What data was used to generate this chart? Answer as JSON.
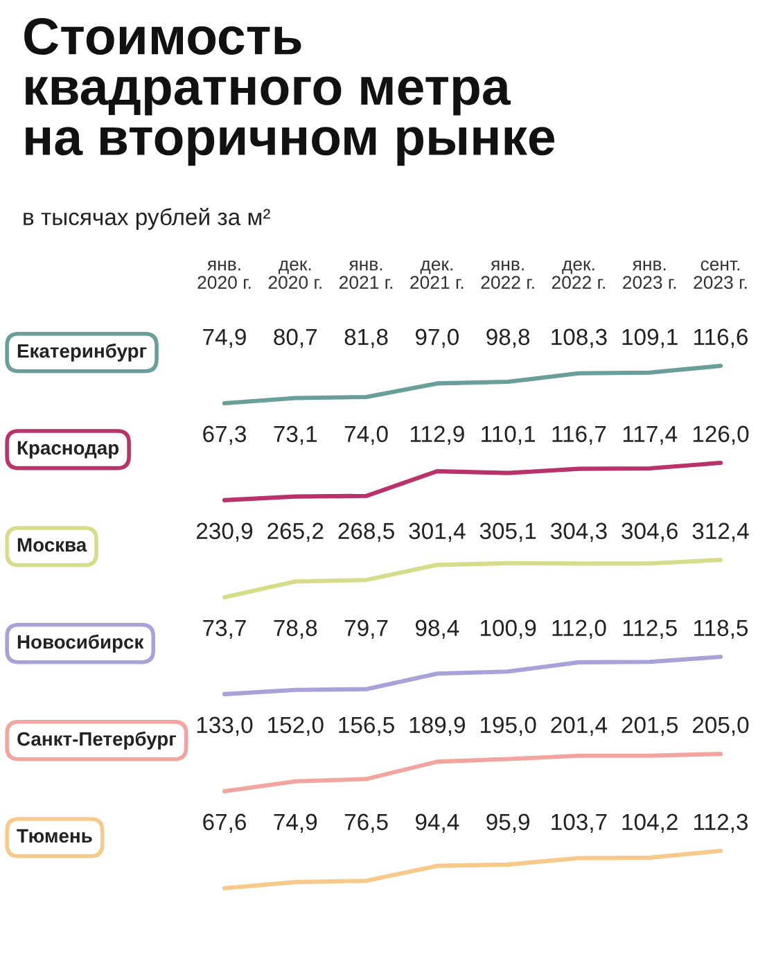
{
  "chart_data": [
    {
      "type": "line",
      "title": "Стоимость\nквадратного метра\nна вторичном рынке",
      "subtitle": "в тысячах рублей за м²",
      "categories": [
        "янв.\n2020 г.",
        "дек.\n2020 г.",
        "янв.\n2021 г.",
        "дек.\n2021 г.",
        "янв.\n2022 г.",
        "дек.\n2022 г.",
        "янв.\n2023 г.",
        "сент.\n2023 г."
      ],
      "tick_labels": "x",
      "series": [
        {
          "name": "Екатеринбург",
          "color": "#6a9e9a",
          "values": [
            74.9,
            80.7,
            81.8,
            97.0,
            98.8,
            108.3,
            109.1,
            116.6
          ],
          "value_labels": [
            "74,9",
            "80,7",
            "81,8",
            "97,0",
            "98,8",
            "108,3",
            "109,1",
            "116,6"
          ]
        }
      ]
    },
    {
      "type": "line",
      "categories": [
        null,
        null,
        null,
        null,
        null,
        null,
        null,
        null
      ],
      "tick_labels": false,
      "series": [
        {
          "name": "Краснодар",
          "color": "#b8336a",
          "values": [
            67.3,
            73.1,
            74.0,
            112.9,
            110.1,
            116.7,
            117.4,
            126.0
          ],
          "value_labels": [
            "67,3",
            "73,1",
            "74,0",
            "112,9",
            "110,1",
            "116,7",
            "117,4",
            "126,0"
          ]
        }
      ]
    },
    {
      "type": "line",
      "categories": [
        null,
        null,
        null,
        null,
        null,
        null,
        null,
        null
      ],
      "tick_labels": false,
      "series": [
        {
          "name": "Москва",
          "color": "#d6dc8a",
          "values": [
            230.9,
            265.2,
            268.5,
            301.4,
            305.1,
            304.3,
            304.6,
            312.4
          ],
          "value_labels": [
            "230,9",
            "265,2",
            "268,5",
            "301,4",
            "305,1",
            "304,3",
            "304,6",
            "312,4"
          ]
        }
      ]
    },
    {
      "type": "line",
      "categories": [
        null,
        null,
        null,
        null,
        null,
        null,
        null,
        null
      ],
      "tick_labels": false,
      "series": [
        {
          "name": "Новосибирск",
          "color": "#a7a3d8",
          "values": [
            73.7,
            78.8,
            79.7,
            98.4,
            100.9,
            112.0,
            112.5,
            118.5
          ],
          "value_labels": [
            "73,7",
            "78,8",
            "79,7",
            "98,4",
            "100,9",
            "112,0",
            "112,5",
            "118,5"
          ]
        }
      ]
    },
    {
      "type": "line",
      "categories": [
        null,
        null,
        null,
        null,
        null,
        null,
        null,
        null
      ],
      "tick_labels": false,
      "series": [
        {
          "name": "Санкт-Петербург",
          "color": "#f2a49f",
          "values": [
            133.0,
            152.0,
            156.5,
            189.9,
            195.0,
            201.4,
            201.5,
            205.0
          ],
          "value_labels": [
            "133,0",
            "152,0",
            "156,5",
            "189,9",
            "195,0",
            "201,4",
            "201,5",
            "205,0"
          ]
        }
      ]
    },
    {
      "type": "line",
      "categories": [
        null,
        null,
        null,
        null,
        null,
        null,
        null,
        null
      ],
      "tick_labels": false,
      "series": [
        {
          "name": "Тюмень",
          "color": "#f7c98b",
          "values": [
            67.6,
            74.9,
            76.5,
            94.4,
            95.9,
            103.7,
            104.2,
            112.3
          ],
          "value_labels": [
            "67,6",
            "74,9",
            "76,5",
            "94,4",
            "95,9",
            "103,7",
            "104,2",
            "112,3"
          ]
        }
      ]
    }
  ]
}
